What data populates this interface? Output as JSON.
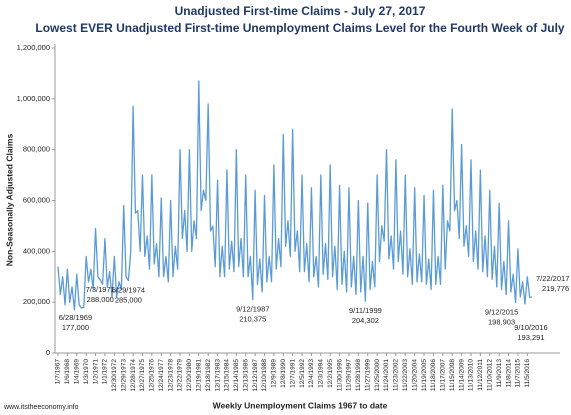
{
  "chart_data": {
    "type": "line",
    "title": "Unadjusted First-time Claims - July 27, 2017",
    "subtitle": "Lowest EVER Unadjusted First-time Unemployment Claims Level for the Fourth Week of July",
    "x_label": "Weekly Unemployment Claims 1967 to date",
    "y_label": "Non-Seasonally Adjusted Claims",
    "footer": "www.itstheeconomy.info",
    "color": "#5b9bd5",
    "grid": false,
    "ylim": [
      0,
      1200000
    ],
    "yticks": [
      0,
      {
        "value": 200000,
        "label": "200,000"
      },
      {
        "value": 400000,
        "label": "400,000"
      },
      {
        "value": 600000,
        "label": "600,000"
      },
      {
        "value": 800000,
        "label": "800,000"
      },
      {
        "value": 1000000,
        "label": "1,000,000"
      },
      {
        "value": 1200000,
        "label": "1,200,000"
      }
    ],
    "categories": [
      "1/7/1967",
      null,
      null,
      null,
      "1/6/1968",
      null,
      null,
      null,
      "1/4/1969",
      null,
      null,
      null,
      "1/3/1970",
      null,
      null,
      null,
      "1/2/1971",
      null,
      null,
      null,
      "1/1/1972",
      null,
      null,
      null,
      "12/30/1972",
      null,
      null,
      null,
      "12/29/1973",
      null,
      null,
      null,
      "12/28/1974",
      null,
      null,
      null,
      "12/27/1975",
      null,
      null,
      null,
      "12/25/1976",
      null,
      null,
      null,
      "12/24/1977",
      null,
      null,
      null,
      "12/23/1978",
      null,
      null,
      null,
      "12/22/1979",
      null,
      null,
      null,
      "12/20/1980",
      null,
      null,
      null,
      "12/19/1981",
      null,
      null,
      null,
      "12/18/1982",
      null,
      null,
      null,
      "12/17/1983",
      null,
      null,
      null,
      "12/15/1984",
      null,
      null,
      null,
      "12/14/1985",
      null,
      null,
      null,
      "12/13/1986",
      null,
      null,
      null,
      "12/12/1987",
      null,
      null,
      null,
      "12/10/1988",
      null,
      null,
      null,
      "12/9/1989",
      null,
      null,
      null,
      "12/8/1990",
      null,
      null,
      null,
      "12/7/1991",
      null,
      null,
      null,
      "12/5/1992",
      null,
      null,
      null,
      "12/4/1993",
      null,
      null,
      null,
      "12/3/1994",
      null,
      null,
      null,
      "12/2/1995",
      null,
      null,
      null,
      "11/30/1996",
      null,
      null,
      null,
      "11/29/1997",
      null,
      null,
      null,
      "11/28/1998",
      null,
      null,
      null,
      "11/27/1999",
      null,
      null,
      null,
      "11/25/2000",
      null,
      null,
      null,
      "11/24/2001",
      null,
      null,
      null,
      "11/23/2002",
      null,
      null,
      null,
      "11/22/2003",
      null,
      null,
      null,
      "11/20/2004",
      null,
      null,
      null,
      "11/19/2005",
      null,
      null,
      null,
      "11/18/2006",
      null,
      null,
      null,
      "11/17/2007",
      null,
      null,
      null,
      "11/15/2008",
      null,
      null,
      null,
      "11/14/2009",
      null,
      null,
      null,
      "11/13/2010",
      null,
      null,
      null,
      "11/12/2011",
      null,
      null,
      null,
      "11/10/2012",
      null,
      null,
      null,
      "11/9/2013",
      null,
      null,
      null,
      "11/8/2014",
      null,
      null,
      null,
      "11/7/2015",
      null,
      null,
      null,
      "11/5/2016",
      null,
      null
    ],
    "values": [
      340000,
      230000,
      300000,
      190000,
      330000,
      200000,
      260000,
      170000,
      310000,
      190000,
      177000,
      180000,
      380000,
      280000,
      330000,
      250000,
      490000,
      300000,
      288000,
      270000,
      450000,
      260000,
      320000,
      220000,
      380000,
      220000,
      280000,
      250000,
      580000,
      300000,
      285000,
      400000,
      970000,
      550000,
      560000,
      400000,
      700000,
      380000,
      460000,
      330000,
      700000,
      350000,
      430000,
      300000,
      610000,
      300000,
      380000,
      280000,
      600000,
      300000,
      420000,
      330000,
      800000,
      450000,
      560000,
      400000,
      800000,
      400000,
      520000,
      450000,
      1070000,
      560000,
      640000,
      600000,
      980000,
      480000,
      500000,
      340000,
      680000,
      300000,
      420000,
      300000,
      720000,
      330000,
      440000,
      320000,
      800000,
      340000,
      450000,
      300000,
      700000,
      300000,
      380000,
      210375,
      640000,
      270000,
      370000,
      240000,
      620000,
      280000,
      380000,
      280000,
      740000,
      330000,
      450000,
      340000,
      860000,
      420000,
      520000,
      380000,
      880000,
      400000,
      480000,
      320000,
      700000,
      320000,
      430000,
      280000,
      650000,
      300000,
      380000,
      260000,
      700000,
      310000,
      430000,
      290000,
      740000,
      300000,
      420000,
      250000,
      660000,
      270000,
      400000,
      240000,
      650000,
      260000,
      380000,
      230000,
      600000,
      240000,
      380000,
      204302,
      590000,
      250000,
      360000,
      260000,
      700000,
      360000,
      500000,
      440000,
      800000,
      370000,
      460000,
      330000,
      760000,
      360000,
      480000,
      310000,
      700000,
      300000,
      410000,
      270000,
      650000,
      280000,
      390000,
      280000,
      620000,
      270000,
      370000,
      250000,
      640000,
      270000,
      380000,
      270000,
      660000,
      330000,
      520000,
      480000,
      960000,
      560000,
      600000,
      450000,
      820000,
      420000,
      500000,
      380000,
      760000,
      360000,
      480000,
      330000,
      720000,
      320000,
      460000,
      300000,
      640000,
      290000,
      420000,
      260000,
      590000,
      250000,
      360000,
      230000,
      520000,
      240000,
      310000,
      198903,
      410000,
      220000,
      280000,
      193291,
      300000,
      220000,
      219776
    ],
    "annotations": [
      {
        "date": "6/28/1969",
        "value": 177000,
        "label": "177,000"
      },
      {
        "date": "7/3/1971",
        "value": 288000,
        "label": "288,000"
      },
      {
        "date": "6/29/1974",
        "value": 285000,
        "label": "285,000"
      },
      {
        "date": "9/12/1987",
        "value": 210375,
        "label": "210,375"
      },
      {
        "date": "9/11/1999",
        "value": 204302,
        "label": "204,302"
      },
      {
        "date": "9/12/2015",
        "value": 198903,
        "label": "198,903"
      },
      {
        "date": "9/10/2016",
        "value": 193291,
        "label": "193,291"
      },
      {
        "date": "7/22/2017",
        "value": 219776,
        "label": "219,776"
      }
    ]
  }
}
